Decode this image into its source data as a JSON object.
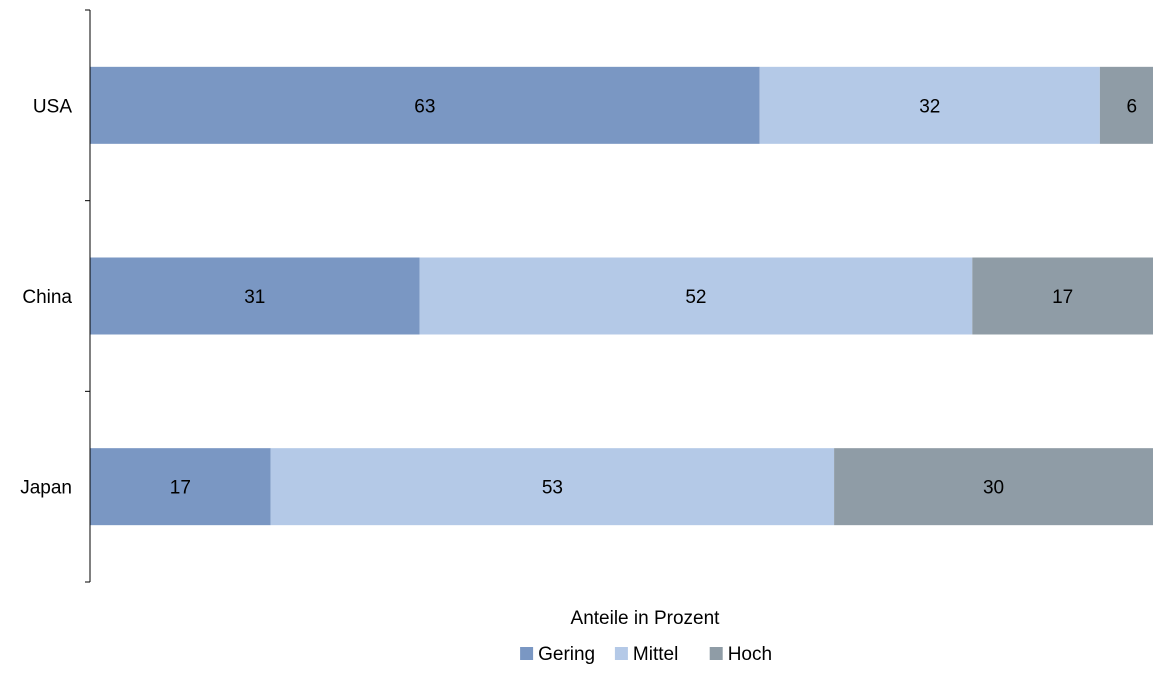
{
  "chart_data": {
    "type": "bar",
    "orientation": "horizontal",
    "stacked": true,
    "categories": [
      "USA",
      "China",
      "Japan"
    ],
    "series": [
      {
        "name": "Gering",
        "color": "#7a97c3",
        "values": [
          63,
          31,
          17
        ]
      },
      {
        "name": "Mittel",
        "color": "#b4c9e7",
        "values": [
          32,
          52,
          53
        ]
      },
      {
        "name": "Hoch",
        "color": "#8f9ca6",
        "values": [
          6,
          17,
          30
        ]
      }
    ],
    "title": "",
    "xlabel": "Anteile in Prozent",
    "ylabel": "",
    "xlim": [
      0,
      100
    ],
    "grid": false,
    "legend": "bottom"
  }
}
